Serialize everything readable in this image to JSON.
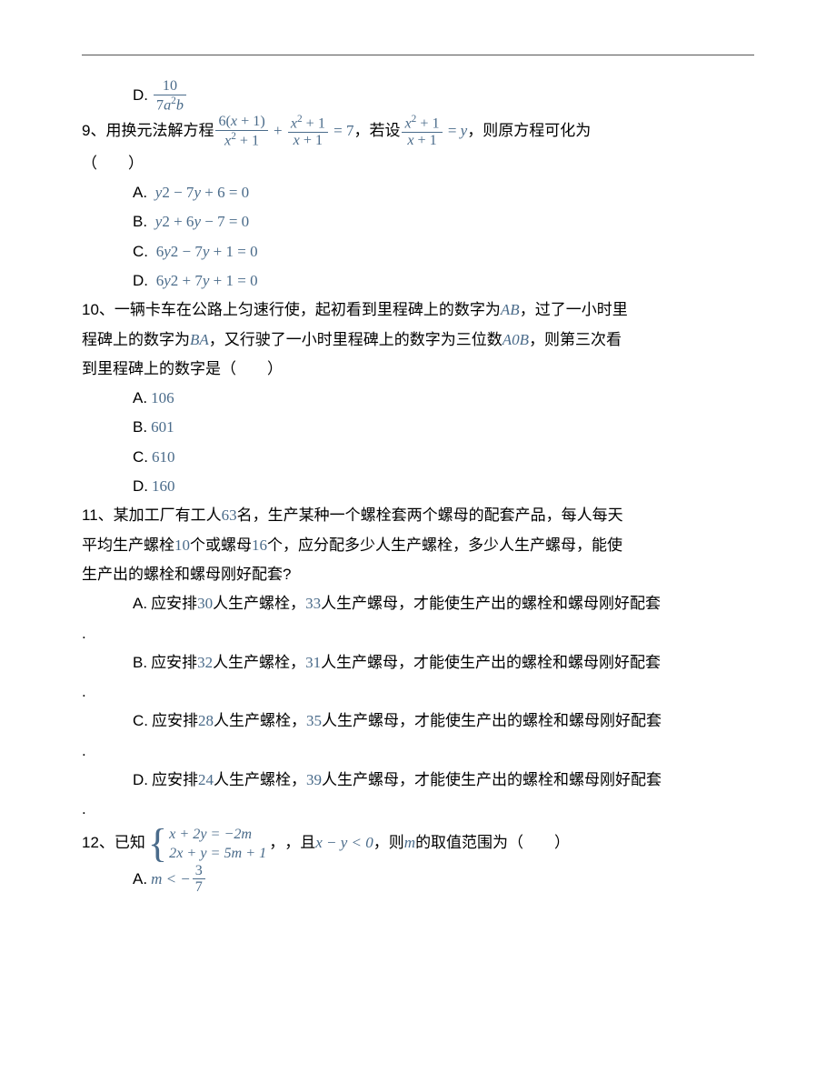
{
  "colors": {
    "text": "#000000",
    "math": "#4a6b8a",
    "rule": "#555555",
    "bg": "#ffffff"
  },
  "fontsize_body_pt": 13,
  "q8": {
    "optD_label": "D."
  },
  "q9": {
    "num": "9、",
    "prefix": "用换元法解方程",
    "mid1": "，若设",
    "mid2": "，则原方程可化为",
    "paren": "（　　）",
    "A": "A.",
    "B": "B.",
    "C": "C.",
    "D": "D."
  },
  "q10": {
    "num": "10、",
    "t1": "一辆卡车在公路上匀速行使，起初看到里程碑上的数字为",
    "t2": "，过了一小时里",
    "t3": "程碑上的数字为",
    "t4": "，又行驶了一小时里程碑上的数字为三位数",
    "t5": "，则第三次看",
    "t6": "到里程碑上的数字是（　　）",
    "ab": "AB",
    "ba": "BA",
    "a0b": "A0B",
    "A": "A.",
    "Av": "106",
    "B": "B.",
    "Bv": "601",
    "C": "C.",
    "Cv": "610",
    "D": "D.",
    "Dv": "160"
  },
  "q11": {
    "num": "11、",
    "t1": "某加工厂有工人",
    "n63": "63",
    "t2": "名，生产某种一个螺栓套两个螺母的配套产品，每人每天",
    "t3": "平均生产螺栓",
    "n10": "10",
    "t4": "个或螺母",
    "n16": "16",
    "t5": "个，应分配多少人生产螺栓，多少人生产螺母，能使",
    "t6": "生产出的螺栓和螺母刚好配套?",
    "A": "A.",
    "A1": "应安排",
    "An1": "30",
    "A2": "人生产螺栓，",
    "An2": "33",
    "A3": "人生产螺母，才能使生产出的螺栓和螺母刚好配套",
    "B": "B.",
    "B1": "应安排",
    "Bn1": "32",
    "B2": "人生产螺栓，",
    "Bn2": "31",
    "B3": "人生产螺母，才能使生产出的螺栓和螺母刚好配套",
    "C": "C.",
    "C1": "应安排",
    "Cn1": "28",
    "C2": "人生产螺栓，",
    "Cn2": "35",
    "C3": "人生产螺母，才能使生产出的螺栓和螺母刚好配套",
    "D": "D.",
    "D1": "应安排",
    "Dn1": "24",
    "D2": "人生产螺栓，",
    "Dn2": "39",
    "D3": "人生产螺母，才能使生产出的螺栓和螺母刚好配套",
    "dot": "."
  },
  "q12": {
    "num": "12、",
    "t1": "已知",
    "eq1": "x + 2y = −2m",
    "eq2": "2x + y = 5m + 1",
    "t2": "，且",
    "cond": "x − y < 0",
    "t3": "，则",
    "mvar": "m",
    "t4": "的取值范围为（　　）",
    "A": "A.",
    "Acond_pre": "m < −"
  }
}
